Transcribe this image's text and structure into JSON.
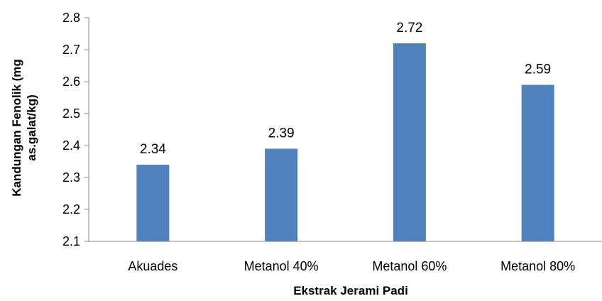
{
  "chart_data": {
    "type": "bar",
    "categories": [
      "Akuades",
      "Metanol 40%",
      "Metanol 60%",
      "Metanol 80%"
    ],
    "values": [
      2.34,
      2.39,
      2.72,
      2.59
    ],
    "data_labels": [
      "2.34",
      "2.39",
      "2.72",
      "2.59"
    ],
    "xlabel": "Ekstrak Jerami Padi",
    "ylabel_lines": [
      "Kandungan Fenolik (mg",
      "as.galat/kg)"
    ],
    "ylim": [
      2.1,
      2.8
    ],
    "yticks": [
      "2.1",
      "2.2",
      "2.3",
      "2.4",
      "2.5",
      "2.6",
      "2.7",
      "2.8"
    ],
    "grid": false,
    "legend": "none",
    "bar_color": "#4f81bd",
    "axis_color": "#868686"
  }
}
